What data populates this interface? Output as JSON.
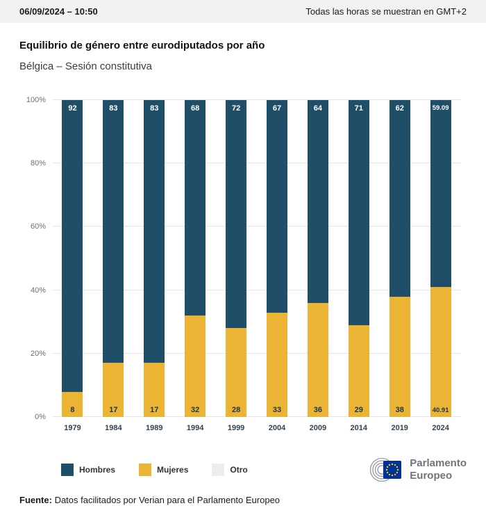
{
  "header": {
    "timestamp": "06/09/2024 – 10:50",
    "timezone_note": "Todas las horas se muestran en GMT+2"
  },
  "title": "Equilibrio de género entre eurodiputados por año",
  "subtitle": "Bélgica – Sesión constitutiva",
  "chart_data": {
    "type": "bar",
    "stacked": true,
    "percent_stacked": true,
    "categories": [
      "1979",
      "1984",
      "1989",
      "1994",
      "1999",
      "2004",
      "2009",
      "2014",
      "2019",
      "2024"
    ],
    "series": [
      {
        "name": "Hombres",
        "color": "#1f4e69",
        "values": [
          92,
          83,
          83,
          68,
          72,
          67,
          64,
          71,
          62,
          59.09
        ],
        "labels": [
          "92",
          "83",
          "83",
          "68",
          "72",
          "67",
          "64",
          "71",
          "62",
          "59.09"
        ]
      },
      {
        "name": "Mujeres",
        "color": "#ecb435",
        "values": [
          8,
          17,
          17,
          32,
          28,
          33,
          36,
          29,
          38,
          40.91
        ],
        "labels": [
          "8",
          "17",
          "17",
          "32",
          "28",
          "33",
          "36",
          "29",
          "38",
          "40.91"
        ]
      },
      {
        "name": "Otro",
        "color": "#ededed",
        "values": [
          0,
          0,
          0,
          0,
          0,
          0,
          0,
          0,
          0,
          0
        ],
        "labels": []
      }
    ],
    "ylim": [
      0,
      100
    ],
    "yticks": [
      "0%",
      "20%",
      "40%",
      "60%",
      "80%",
      "100%"
    ],
    "grid": true,
    "legend_position": "bottom"
  },
  "legend": {
    "items": [
      {
        "label": "Hombres",
        "color": "#1f4e69"
      },
      {
        "label": "Mujeres",
        "color": "#ecb435"
      },
      {
        "label": "Otro",
        "color": "#ededed"
      }
    ]
  },
  "logo": {
    "text_line1": "Parlamento",
    "text_line2": "Europeo"
  },
  "footer": {
    "source_label": "Fuente:",
    "source_text": " Datos facilitados por Verian para el Parlamento Europeo"
  }
}
